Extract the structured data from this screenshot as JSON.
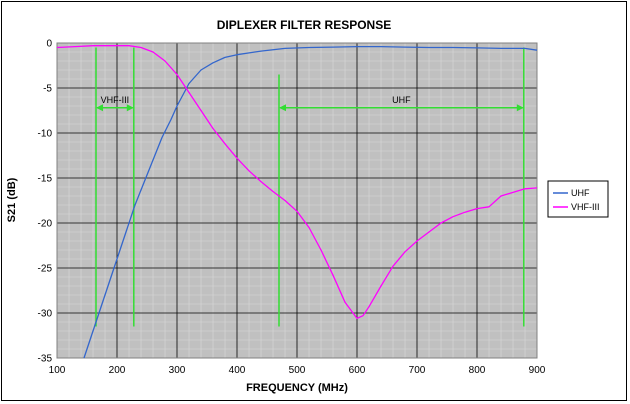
{
  "chart_data": {
    "type": "line",
    "title": "DIPLEXER FILTER RESPONSE",
    "xlabel": "FREQUENCY (MHz)",
    "ylabel": "S21 (dB)",
    "xlim": [
      100,
      900
    ],
    "ylim": [
      -35,
      0
    ],
    "xticks": [
      100,
      200,
      300,
      400,
      500,
      600,
      700,
      800,
      900
    ],
    "yticks": [
      0,
      -5,
      -10,
      -15,
      -20,
      -25,
      -30,
      -35
    ],
    "grid": true,
    "legend_position": "right",
    "series": [
      {
        "name": "UHF",
        "color": "#3366cc",
        "x": [
          145,
          155,
          165,
          175,
          185,
          200,
          215,
          230,
          245,
          260,
          275,
          290,
          300,
          320,
          340,
          360,
          380,
          400,
          440,
          480,
          520,
          560,
          600,
          640,
          680,
          720,
          760,
          800,
          840,
          880,
          900
        ],
        "y": [
          -35,
          -33,
          -31,
          -29,
          -27,
          -24,
          -21,
          -18,
          -15.5,
          -13,
          -10.5,
          -8.5,
          -7,
          -4.5,
          -3,
          -2.2,
          -1.6,
          -1.3,
          -0.9,
          -0.6,
          -0.5,
          -0.45,
          -0.4,
          -0.4,
          -0.45,
          -0.5,
          -0.5,
          -0.55,
          -0.6,
          -0.6,
          -0.8
        ]
      },
      {
        "name": "VHF-III",
        "color": "#ff00ff",
        "x": [
          100,
          130,
          160,
          190,
          220,
          240,
          260,
          280,
          300,
          320,
          340,
          360,
          380,
          400,
          420,
          440,
          460,
          480,
          500,
          520,
          540,
          560,
          580,
          600,
          610,
          620,
          640,
          660,
          680,
          700,
          720,
          740,
          760,
          780,
          800,
          820,
          840,
          860,
          880,
          900
        ],
        "y": [
          -0.5,
          -0.4,
          -0.3,
          -0.3,
          -0.3,
          -0.5,
          -1,
          -2,
          -3.5,
          -5.5,
          -7.5,
          -9.5,
          -11.2,
          -12.8,
          -14.2,
          -15.4,
          -16.5,
          -17.5,
          -18.7,
          -20.5,
          -23,
          -25.8,
          -28.8,
          -30.6,
          -30.3,
          -29.3,
          -27,
          -24.8,
          -23.2,
          -22,
          -21,
          -20,
          -19.3,
          -18.8,
          -18.4,
          -18.2,
          -17,
          -16.6,
          -16.2,
          -16.1
        ]
      }
    ],
    "annotations": [
      {
        "label": "VHF-III",
        "x_start": 165,
        "x_end": 228,
        "y": -7.2,
        "color": "#33dd33"
      },
      {
        "label": "UHF",
        "x_start": 470,
        "x_end": 878,
        "y": -7.2,
        "color": "#33dd33"
      }
    ],
    "band_lines": [
      {
        "x": 165,
        "y_top": -0.5,
        "y_bottom": -31.5
      },
      {
        "x": 228,
        "y_top": -0.5,
        "y_bottom": -31.5
      },
      {
        "x": 470,
        "y_top": -3.5,
        "y_bottom": -31.5
      },
      {
        "x": 878,
        "y_top": -0.5,
        "y_bottom": -31.5
      }
    ]
  }
}
